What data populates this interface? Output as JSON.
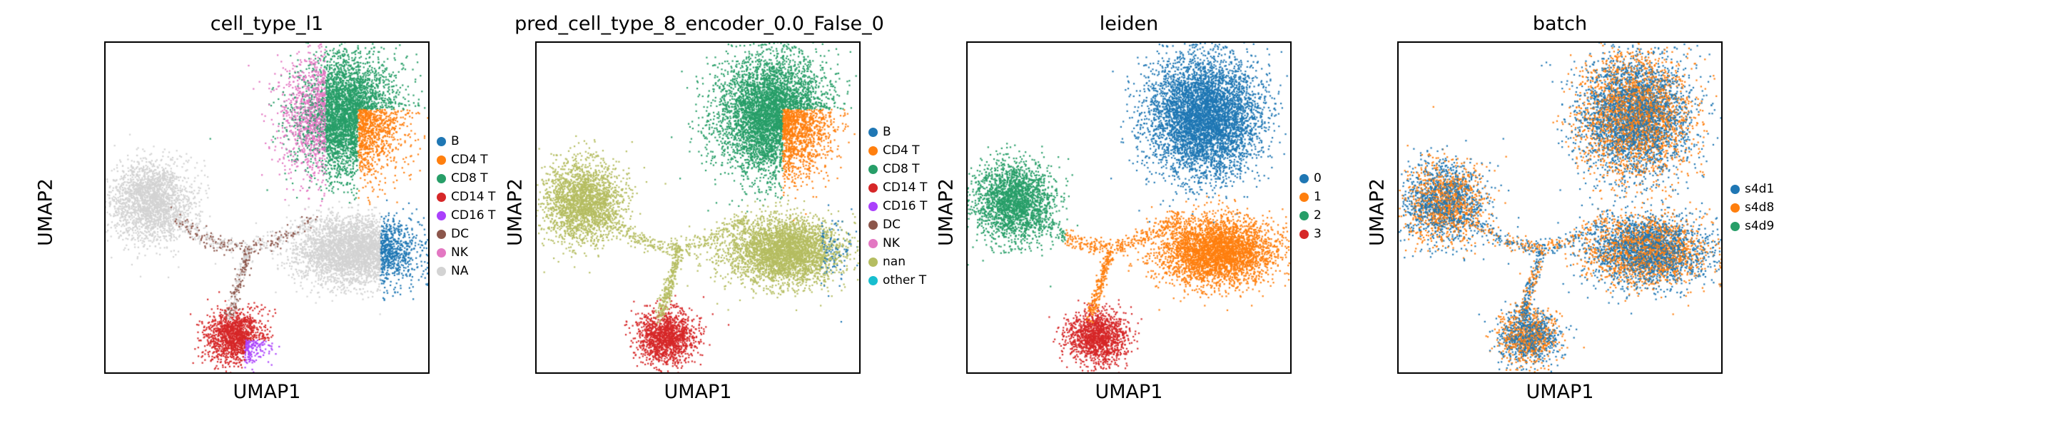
{
  "chart_data": [
    {
      "type": "scatter",
      "title": "cell_type_l1",
      "xlabel": "UMAP1",
      "ylabel": "UMAP2",
      "legend_position": "right",
      "categories": [
        {
          "label": "B",
          "color": "#1f77b4"
        },
        {
          "label": "CD4 T",
          "color": "#ff7f0e"
        },
        {
          "label": "CD8 T",
          "color": "#279e68"
        },
        {
          "label": "CD14 T",
          "color": "#d62728"
        },
        {
          "label": "CD16 T",
          "color": "#aa40fc"
        },
        {
          "label": "DC",
          "color": "#8c564b"
        },
        {
          "label": "NK",
          "color": "#e377c2"
        },
        {
          "label": "NA",
          "color": "#d3d3d3"
        }
      ]
    },
    {
      "type": "scatter",
      "title": "pred_cell_type_8_encoder_0.0_False_0",
      "xlabel": "UMAP1",
      "ylabel": "UMAP2",
      "legend_position": "right",
      "categories": [
        {
          "label": "B",
          "color": "#1f77b4"
        },
        {
          "label": "CD4 T",
          "color": "#ff7f0e"
        },
        {
          "label": "CD8 T",
          "color": "#279e68"
        },
        {
          "label": "CD14 T",
          "color": "#d62728"
        },
        {
          "label": "CD16 T",
          "color": "#aa40fc"
        },
        {
          "label": "DC",
          "color": "#8c564b"
        },
        {
          "label": "NK",
          "color": "#e377c2"
        },
        {
          "label": "nan",
          "color": "#b5bd61"
        },
        {
          "label": "other T",
          "color": "#17becf"
        }
      ]
    },
    {
      "type": "scatter",
      "title": "leiden",
      "xlabel": "UMAP1",
      "ylabel": "UMAP2",
      "legend_position": "right",
      "categories": [
        {
          "label": "0",
          "color": "#1f77b4"
        },
        {
          "label": "1",
          "color": "#ff7f0e"
        },
        {
          "label": "2",
          "color": "#279e68"
        },
        {
          "label": "3",
          "color": "#d62728"
        }
      ]
    },
    {
      "type": "scatter",
      "title": "batch",
      "xlabel": "UMAP1",
      "ylabel": "UMAP2",
      "legend_position": "right",
      "categories": [
        {
          "label": "s4d1",
          "color": "#1f77b4"
        },
        {
          "label": "s4d8",
          "color": "#ff7f0e"
        },
        {
          "label": "s4d9",
          "color": "#279e68"
        }
      ]
    }
  ]
}
